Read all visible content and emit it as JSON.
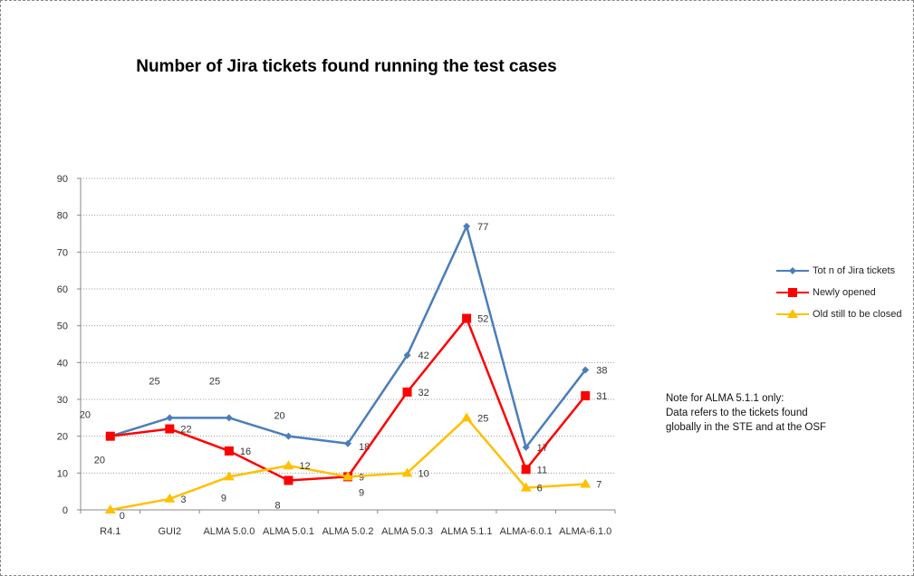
{
  "chart_data": {
    "type": "line",
    "title": "Number of Jira tickets found running the test cases",
    "categories": [
      "R4.1",
      "GUI2",
      "ALMA 5.0.0",
      "ALMA 5.0.1",
      "ALMA 5.0.2",
      "ALMA 5.0.3",
      "ALMA 5.1.1",
      "ALMA-6.0.1",
      "ALMA-6.1.0"
    ],
    "ylim": [
      0,
      90
    ],
    "yticks": [
      0,
      10,
      20,
      30,
      40,
      50,
      60,
      70,
      80,
      90
    ],
    "grid": true,
    "legend_position": "right",
    "series": [
      {
        "name": "Tot n of Jira tickets",
        "color": "#4a7ebb",
        "marker": "diamond",
        "values": [
          20,
          25,
          25,
          20,
          18,
          42,
          77,
          17,
          38
        ]
      },
      {
        "name": "Newly opened",
        "color": "#ff0000",
        "marker": "square",
        "values": [
          20,
          22,
          16,
          8,
          9,
          32,
          52,
          11,
          31
        ]
      },
      {
        "name": "Old still to be closed",
        "color": "#ffc000",
        "marker": "triangle",
        "values": [
          0,
          3,
          9,
          12,
          9,
          10,
          25,
          6,
          7
        ]
      }
    ],
    "note": [
      "Note for ALMA 5.1.1 only:",
      "Data refers to the tickets found",
      "globally in the STE and at the OSF"
    ]
  }
}
